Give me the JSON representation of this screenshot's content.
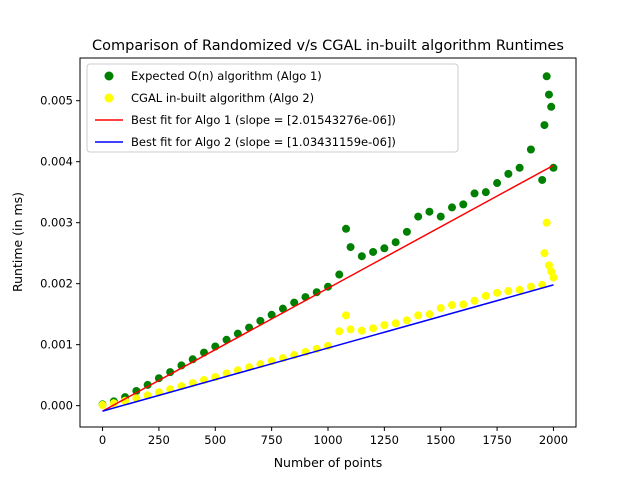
{
  "chart_data": {
    "type": "scatter",
    "title": "Comparison of Randomized v/s CGAL in-built algorithm Runtimes",
    "xlabel": "Number of points",
    "ylabel": "Runtime (in ms)",
    "xlim": [
      -100,
      2100
    ],
    "ylim": [
      -0.00035,
      0.0057
    ],
    "x_ticks": [
      "0",
      "250",
      "500",
      "750",
      "1000",
      "1250",
      "1500",
      "1750",
      "2000"
    ],
    "y_ticks": [
      "0.000",
      "0.001",
      "0.002",
      "0.003",
      "0.004",
      "0.005"
    ],
    "grid": false,
    "legend_position": "upper-left",
    "series": [
      {
        "name": "Expected O(n) algorithm (Algo 1)",
        "kind": "scatter",
        "color": "#008000",
        "x": [
          0,
          50,
          100,
          150,
          200,
          250,
          300,
          350,
          400,
          450,
          500,
          550,
          600,
          650,
          700,
          750,
          800,
          850,
          900,
          950,
          1000,
          1050,
          1080,
          1100,
          1150,
          1200,
          1250,
          1300,
          1350,
          1400,
          1450,
          1500,
          1550,
          1600,
          1650,
          1700,
          1750,
          1800,
          1850,
          1900,
          1950,
          1960,
          1970,
          1980,
          1990,
          2000
        ],
        "y": [
          2e-05,
          7e-05,
          0.00014,
          0.00024,
          0.00034,
          0.00045,
          0.00055,
          0.00066,
          0.00076,
          0.00087,
          0.00097,
          0.00108,
          0.00118,
          0.00128,
          0.00139,
          0.00149,
          0.00159,
          0.00169,
          0.00178,
          0.00186,
          0.00195,
          0.00215,
          0.0029,
          0.0026,
          0.00245,
          0.00252,
          0.00258,
          0.00268,
          0.00285,
          0.0031,
          0.00318,
          0.0031,
          0.00325,
          0.0033,
          0.00348,
          0.0035,
          0.00365,
          0.0038,
          0.0039,
          0.0042,
          0.0037,
          0.0046,
          0.0054,
          0.0051,
          0.0049,
          0.0039
        ]
      },
      {
        "name": "CGAL in-built algorithm (Algo 2)",
        "kind": "scatter",
        "color": "#ffff00",
        "x": [
          0,
          50,
          100,
          150,
          200,
          250,
          300,
          350,
          400,
          450,
          500,
          550,
          600,
          650,
          700,
          750,
          800,
          850,
          900,
          950,
          1000,
          1050,
          1080,
          1100,
          1150,
          1200,
          1250,
          1300,
          1350,
          1400,
          1450,
          1500,
          1550,
          1600,
          1650,
          1700,
          1750,
          1800,
          1850,
          1900,
          1950,
          1960,
          1970,
          1980,
          1990,
          2000
        ],
        "y": [
          1e-05,
          4e-05,
          8e-05,
          0.00012,
          0.00017,
          0.00022,
          0.00027,
          0.00032,
          0.00037,
          0.00042,
          0.00047,
          0.00053,
          0.00058,
          0.00063,
          0.00068,
          0.00073,
          0.00078,
          0.00083,
          0.00088,
          0.00093,
          0.00098,
          0.00122,
          0.00148,
          0.00125,
          0.00123,
          0.00127,
          0.00132,
          0.00135,
          0.0014,
          0.00148,
          0.0015,
          0.0016,
          0.00165,
          0.00166,
          0.00172,
          0.0018,
          0.00185,
          0.00188,
          0.0019,
          0.00195,
          0.00198,
          0.0025,
          0.003,
          0.0023,
          0.0022,
          0.0021
        ]
      },
      {
        "name": "Best fit for Algo 1 (slope = [2.01543276e-06])",
        "kind": "line",
        "color": "#ff0000",
        "x": [
          0,
          2000
        ],
        "y": [
          -9e-05,
          0.00394
        ]
      },
      {
        "name": "Best fit for Algo 2 (slope = [1.03431159e-06])",
        "kind": "line",
        "color": "#0000ff",
        "x": [
          0,
          2000
        ],
        "y": [
          -9e-05,
          0.00198
        ]
      }
    ]
  }
}
